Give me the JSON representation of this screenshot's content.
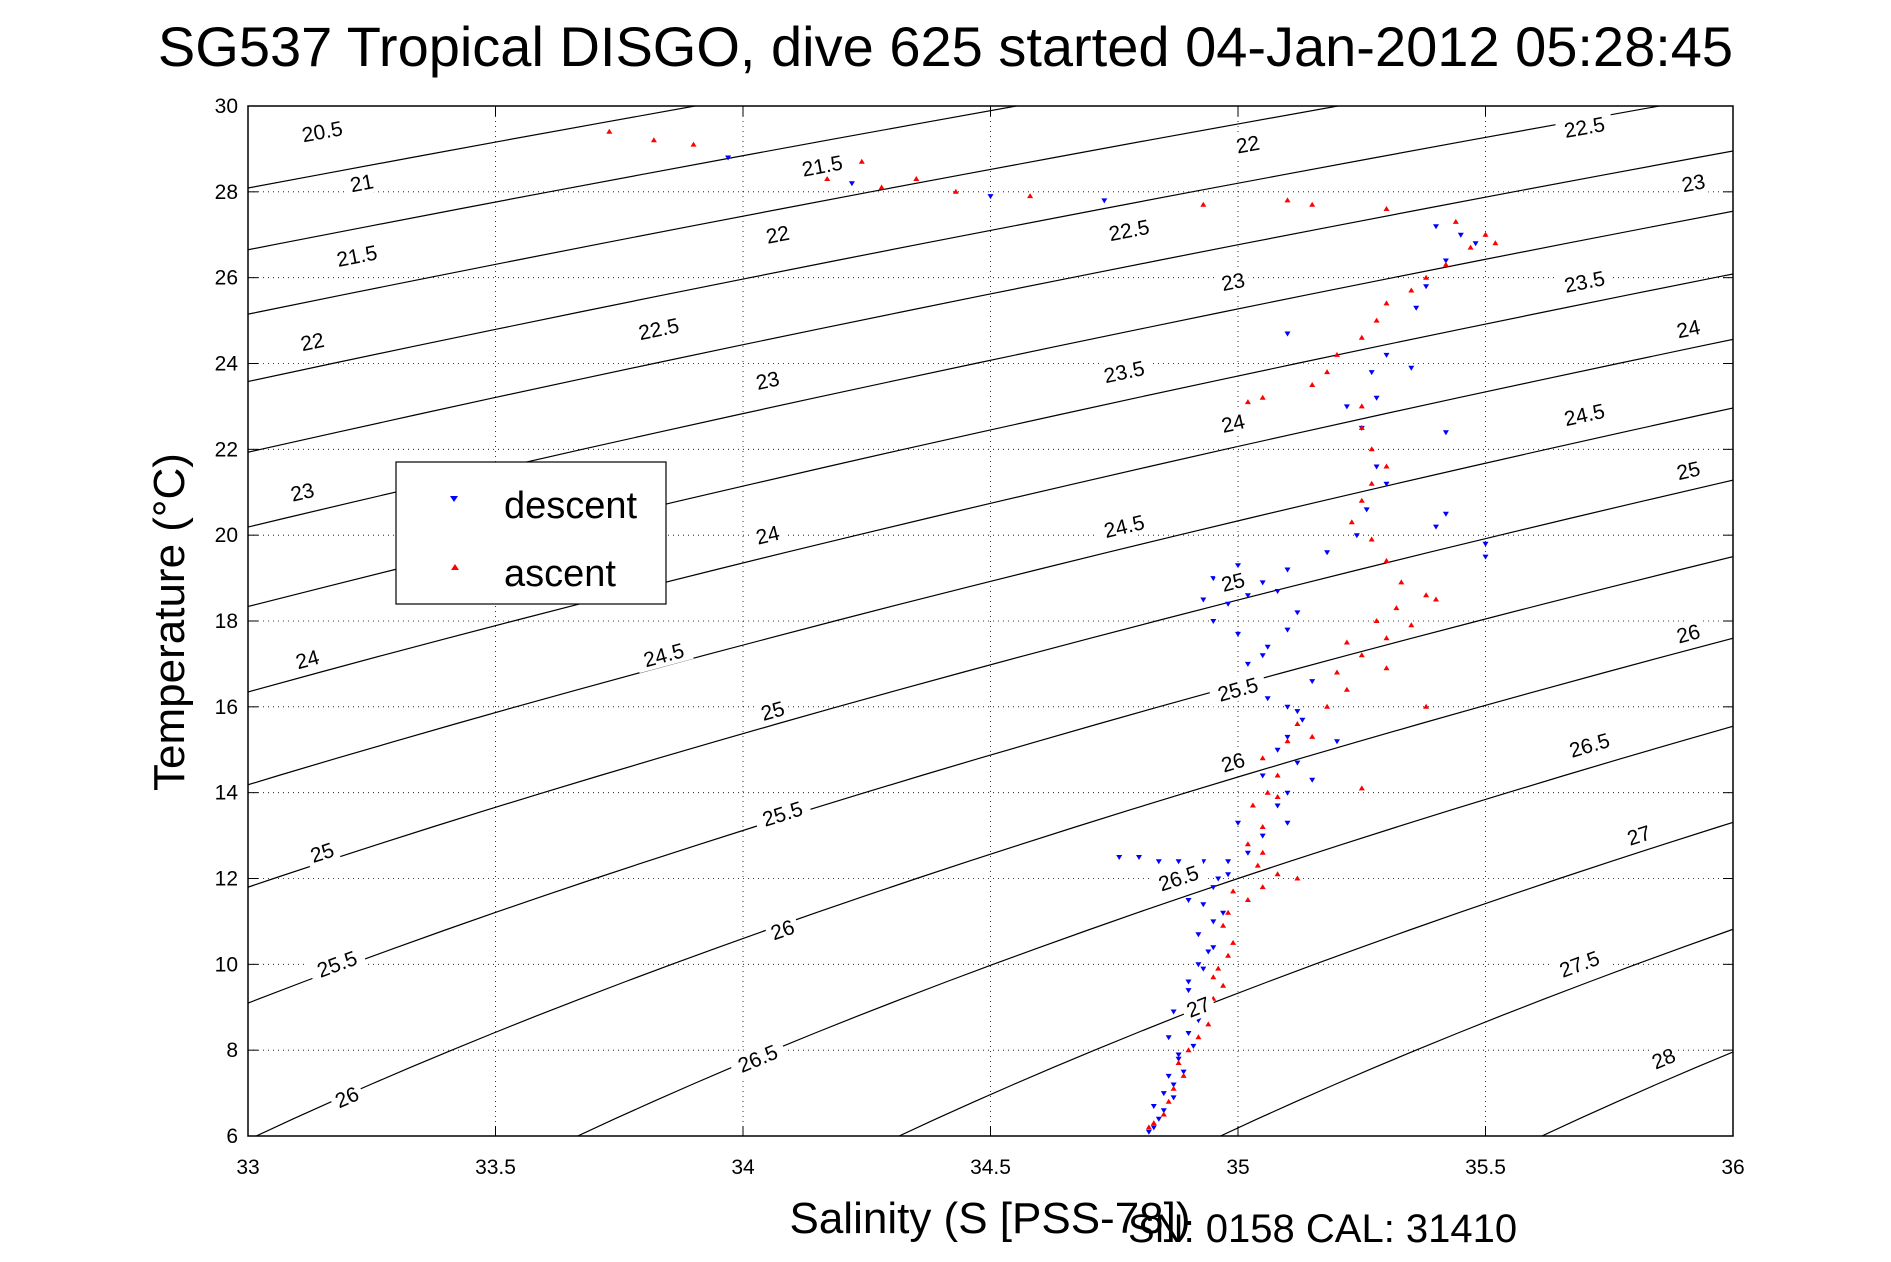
{
  "title": "SG537 Tropical DISGO, dive 625 started 04-Jan-2012 05:28:45",
  "footer": "SN: 0158  CAL: 31410",
  "chart_data": {
    "type": "scatter",
    "title": "SG537 Tropical DISGO, dive 625 started 04-Jan-2012 05:28:45",
    "xlabel": "Salinity (S [PSS-78])",
    "ylabel": "Temperature (°C)",
    "xlim": [
      33,
      36
    ],
    "ylim": [
      6,
      30
    ],
    "xticks": [
      33,
      33.5,
      34,
      34.5,
      35,
      35.5,
      36
    ],
    "xtick_labels": [
      "33",
      "33.5",
      "34",
      "34.5",
      "35",
      "35.5",
      "36"
    ],
    "yticks": [
      6,
      8,
      10,
      12,
      14,
      16,
      18,
      20,
      22,
      24,
      26,
      28,
      30
    ],
    "ytick_labels": [
      "6",
      "8",
      "10",
      "12",
      "14",
      "16",
      "18",
      "20",
      "22",
      "24",
      "26",
      "28",
      "30"
    ],
    "grid": true,
    "legend_position": "upper-left",
    "density_contours": {
      "levels": [
        20.5,
        21,
        21.5,
        22,
        22.5,
        23,
        23.5,
        24,
        24.5,
        25,
        25.5,
        26,
        26.5,
        27,
        27.5,
        28
      ],
      "labels": [
        {
          "text": "20.5",
          "s": 33.15,
          "t": 29.4
        },
        {
          "text": "21",
          "s": 33.23,
          "t": 28.2
        },
        {
          "text": "21.5",
          "s": 33.22,
          "t": 26.5
        },
        {
          "text": "22",
          "s": 33.13,
          "t": 24.5
        },
        {
          "text": "23",
          "s": 33.11,
          "t": 21.0
        },
        {
          "text": "24",
          "s": 33.12,
          "t": 17.1
        },
        {
          "text": "25",
          "s": 33.15,
          "t": 12.6
        },
        {
          "text": "25.5",
          "s": 33.18,
          "t": 10.0
        },
        {
          "text": "26",
          "s": 33.2,
          "t": 6.9
        },
        {
          "text": "21.5",
          "s": 34.16,
          "t": 28.6
        },
        {
          "text": "22",
          "s": 34.07,
          "t": 27.0
        },
        {
          "text": "22.5",
          "s": 33.83,
          "t": 24.8
        },
        {
          "text": "23",
          "s": 34.05,
          "t": 23.6
        },
        {
          "text": "24",
          "s": 34.05,
          "t": 20.0
        },
        {
          "text": "24.5",
          "s": 33.84,
          "t": 17.2
        },
        {
          "text": "25",
          "s": 34.06,
          "t": 15.9
        },
        {
          "text": "25.5",
          "s": 34.08,
          "t": 13.5
        },
        {
          "text": "26",
          "s": 34.08,
          "t": 10.8
        },
        {
          "text": "26.5",
          "s": 34.03,
          "t": 7.8
        },
        {
          "text": "22",
          "s": 35.02,
          "t": 29.1
        },
        {
          "text": "22.5",
          "s": 34.78,
          "t": 27.1
        },
        {
          "text": "23",
          "s": 34.99,
          "t": 25.9
        },
        {
          "text": "23.5",
          "s": 34.77,
          "t": 23.8
        },
        {
          "text": "24",
          "s": 34.99,
          "t": 22.6
        },
        {
          "text": "24.5",
          "s": 34.77,
          "t": 20.2
        },
        {
          "text": "25",
          "s": 34.99,
          "t": 18.9
        },
        {
          "text": "25.5",
          "s": 35.0,
          "t": 16.4
        },
        {
          "text": "26",
          "s": 34.99,
          "t": 14.7
        },
        {
          "text": "26.5",
          "s": 34.88,
          "t": 12.0
        },
        {
          "text": "27",
          "s": 34.92,
          "t": 9.0
        },
        {
          "text": "22.5",
          "s": 35.7,
          "t": 29.5
        },
        {
          "text": "23",
          "s": 35.92,
          "t": 28.2
        },
        {
          "text": "23.5",
          "s": 35.7,
          "t": 25.9
        },
        {
          "text": "24",
          "s": 35.91,
          "t": 24.8
        },
        {
          "text": "24.5",
          "s": 35.7,
          "t": 22.8
        },
        {
          "text": "25",
          "s": 35.91,
          "t": 21.5
        },
        {
          "text": "26",
          "s": 35.91,
          "t": 17.7
        },
        {
          "text": "26.5",
          "s": 35.71,
          "t": 15.1
        },
        {
          "text": "27",
          "s": 35.81,
          "t": 13.0
        },
        {
          "text": "27.5",
          "s": 35.69,
          "t": 10.0
        },
        {
          "text": "28",
          "s": 35.86,
          "t": 7.8
        }
      ]
    },
    "series": [
      {
        "name": "descent",
        "color": "#0000ff",
        "marker": "triangle-down",
        "points": [
          [
            33.97,
            28.8
          ],
          [
            34.18,
            28.6
          ],
          [
            34.22,
            28.2
          ],
          [
            34.5,
            27.9
          ],
          [
            34.73,
            27.8
          ],
          [
            35.1,
            24.7
          ],
          [
            35.35,
            23.9
          ],
          [
            35.28,
            23.2
          ],
          [
            35.42,
            22.4
          ],
          [
            35.42,
            20.5
          ],
          [
            35.4,
            20.2
          ],
          [
            35.5,
            19.8
          ],
          [
            35.5,
            19.5
          ],
          [
            35.4,
            27.2
          ],
          [
            35.45,
            27.0
          ],
          [
            35.48,
            26.8
          ],
          [
            35.42,
            26.4
          ],
          [
            35.38,
            25.8
          ],
          [
            35.36,
            25.3
          ],
          [
            35.3,
            24.2
          ],
          [
            35.27,
            23.8
          ],
          [
            35.22,
            23.0
          ],
          [
            35.25,
            22.5
          ],
          [
            35.28,
            21.6
          ],
          [
            35.3,
            21.2
          ],
          [
            35.26,
            20.6
          ],
          [
            35.24,
            20.0
          ],
          [
            35.18,
            19.6
          ],
          [
            35.1,
            19.2
          ],
          [
            35.05,
            18.9
          ],
          [
            35.02,
            18.6
          ],
          [
            34.98,
            18.4
          ],
          [
            34.93,
            18.5
          ],
          [
            34.95,
            19.0
          ],
          [
            35.0,
            19.3
          ],
          [
            35.08,
            18.7
          ],
          [
            35.12,
            18.2
          ],
          [
            35.1,
            17.8
          ],
          [
            35.06,
            17.4
          ],
          [
            35.02,
            17.0
          ],
          [
            35.0,
            16.6
          ],
          [
            35.06,
            16.2
          ],
          [
            35.1,
            16.0
          ],
          [
            35.13,
            15.7
          ],
          [
            35.1,
            15.3
          ],
          [
            35.08,
            15.0
          ],
          [
            35.12,
            14.7
          ],
          [
            35.15,
            14.3
          ],
          [
            35.1,
            14.0
          ],
          [
            35.08,
            13.7
          ],
          [
            35.1,
            13.3
          ],
          [
            35.05,
            13.0
          ],
          [
            35.02,
            12.6
          ],
          [
            34.98,
            12.4
          ],
          [
            34.93,
            12.4
          ],
          [
            34.88,
            12.4
          ],
          [
            34.84,
            12.4
          ],
          [
            34.8,
            12.5
          ],
          [
            34.76,
            12.5
          ],
          [
            34.98,
            12.1
          ],
          [
            34.95,
            11.8
          ],
          [
            34.93,
            11.4
          ],
          [
            34.95,
            11.0
          ],
          [
            34.92,
            10.7
          ],
          [
            34.94,
            10.3
          ],
          [
            34.92,
            10.0
          ],
          [
            34.9,
            9.6
          ],
          [
            34.93,
            9.3
          ],
          [
            34.9,
            9.0
          ],
          [
            34.92,
            8.7
          ],
          [
            34.9,
            8.4
          ],
          [
            34.91,
            8.1
          ],
          [
            34.88,
            7.8
          ],
          [
            34.89,
            7.5
          ],
          [
            34.87,
            7.2
          ],
          [
            34.87,
            6.9
          ],
          [
            34.85,
            6.6
          ],
          [
            34.84,
            6.4
          ],
          [
            34.83,
            6.2
          ],
          [
            34.82,
            6.1
          ],
          [
            34.95,
            18.0
          ],
          [
            35.0,
            17.7
          ],
          [
            35.05,
            17.2
          ],
          [
            35.15,
            16.6
          ],
          [
            35.12,
            15.9
          ],
          [
            35.2,
            15.2
          ],
          [
            35.05,
            14.4
          ],
          [
            35.0,
            13.3
          ],
          [
            34.96,
            12.0
          ],
          [
            34.9,
            11.5
          ],
          [
            34.97,
            11.2
          ],
          [
            34.95,
            10.4
          ],
          [
            34.93,
            9.9
          ],
          [
            34.9,
            9.4
          ],
          [
            34.87,
            8.9
          ],
          [
            34.86,
            8.3
          ],
          [
            34.88,
            7.9
          ],
          [
            34.86,
            7.4
          ],
          [
            34.85,
            7.0
          ],
          [
            34.83,
            6.7
          ]
        ]
      },
      {
        "name": "ascent",
        "color": "#ff0000",
        "marker": "triangle-up",
        "points": [
          [
            33.73,
            29.4
          ],
          [
            33.82,
            29.2
          ],
          [
            33.9,
            29.1
          ],
          [
            34.15,
            28.4
          ],
          [
            34.17,
            28.3
          ],
          [
            34.2,
            28.5
          ],
          [
            34.24,
            28.7
          ],
          [
            34.28,
            28.1
          ],
          [
            34.35,
            28.3
          ],
          [
            34.43,
            28.0
          ],
          [
            34.58,
            27.9
          ],
          [
            34.93,
            27.7
          ],
          [
            35.15,
            27.7
          ],
          [
            35.3,
            27.6
          ],
          [
            35.1,
            27.8
          ],
          [
            35.44,
            27.3
          ],
          [
            35.5,
            27.0
          ],
          [
            35.52,
            26.8
          ],
          [
            35.47,
            26.7
          ],
          [
            35.42,
            26.3
          ],
          [
            35.38,
            26.0
          ],
          [
            35.35,
            25.7
          ],
          [
            35.3,
            25.4
          ],
          [
            35.28,
            25.0
          ],
          [
            35.25,
            24.6
          ],
          [
            35.2,
            24.2
          ],
          [
            35.18,
            23.8
          ],
          [
            35.15,
            23.5
          ],
          [
            35.05,
            23.2
          ],
          [
            35.02,
            23.1
          ],
          [
            35.25,
            23.0
          ],
          [
            35.25,
            22.5
          ],
          [
            35.27,
            22.0
          ],
          [
            35.3,
            21.6
          ],
          [
            35.27,
            21.2
          ],
          [
            35.25,
            20.8
          ],
          [
            35.23,
            20.3
          ],
          [
            35.27,
            19.9
          ],
          [
            35.3,
            19.4
          ],
          [
            35.33,
            18.9
          ],
          [
            35.38,
            18.6
          ],
          [
            35.32,
            18.3
          ],
          [
            35.28,
            18.0
          ],
          [
            35.3,
            17.6
          ],
          [
            35.25,
            17.2
          ],
          [
            35.2,
            16.8
          ],
          [
            35.22,
            16.4
          ],
          [
            35.18,
            16.0
          ],
          [
            35.12,
            15.6
          ],
          [
            35.1,
            15.2
          ],
          [
            35.05,
            14.8
          ],
          [
            35.08,
            14.4
          ],
          [
            35.06,
            14.0
          ],
          [
            35.03,
            13.7
          ],
          [
            35.05,
            13.2
          ],
          [
            35.02,
            12.8
          ],
          [
            35.05,
            12.6
          ],
          [
            35.04,
            12.3
          ],
          [
            35.08,
            12.1
          ],
          [
            35.12,
            12.0
          ],
          [
            35.05,
            11.8
          ],
          [
            35.02,
            11.5
          ],
          [
            34.98,
            11.2
          ],
          [
            34.97,
            10.9
          ],
          [
            34.99,
            10.5
          ],
          [
            34.98,
            10.2
          ],
          [
            34.96,
            9.9
          ],
          [
            34.97,
            9.5
          ],
          [
            34.95,
            9.2
          ],
          [
            34.93,
            8.9
          ],
          [
            34.94,
            8.6
          ],
          [
            34.92,
            8.3
          ],
          [
            34.9,
            8.0
          ],
          [
            34.88,
            7.7
          ],
          [
            34.89,
            7.4
          ],
          [
            34.87,
            7.1
          ],
          [
            34.86,
            6.8
          ],
          [
            34.85,
            6.5
          ],
          [
            34.83,
            6.3
          ],
          [
            34.82,
            6.2
          ],
          [
            35.4,
            18.5
          ],
          [
            35.35,
            17.9
          ],
          [
            35.22,
            17.5
          ],
          [
            35.3,
            16.9
          ],
          [
            35.38,
            16.0
          ],
          [
            35.15,
            15.3
          ],
          [
            35.25,
            14.1
          ],
          [
            35.08,
            13.9
          ],
          [
            34.99,
            11.7
          ],
          [
            34.95,
            9.7
          ]
        ]
      }
    ]
  }
}
